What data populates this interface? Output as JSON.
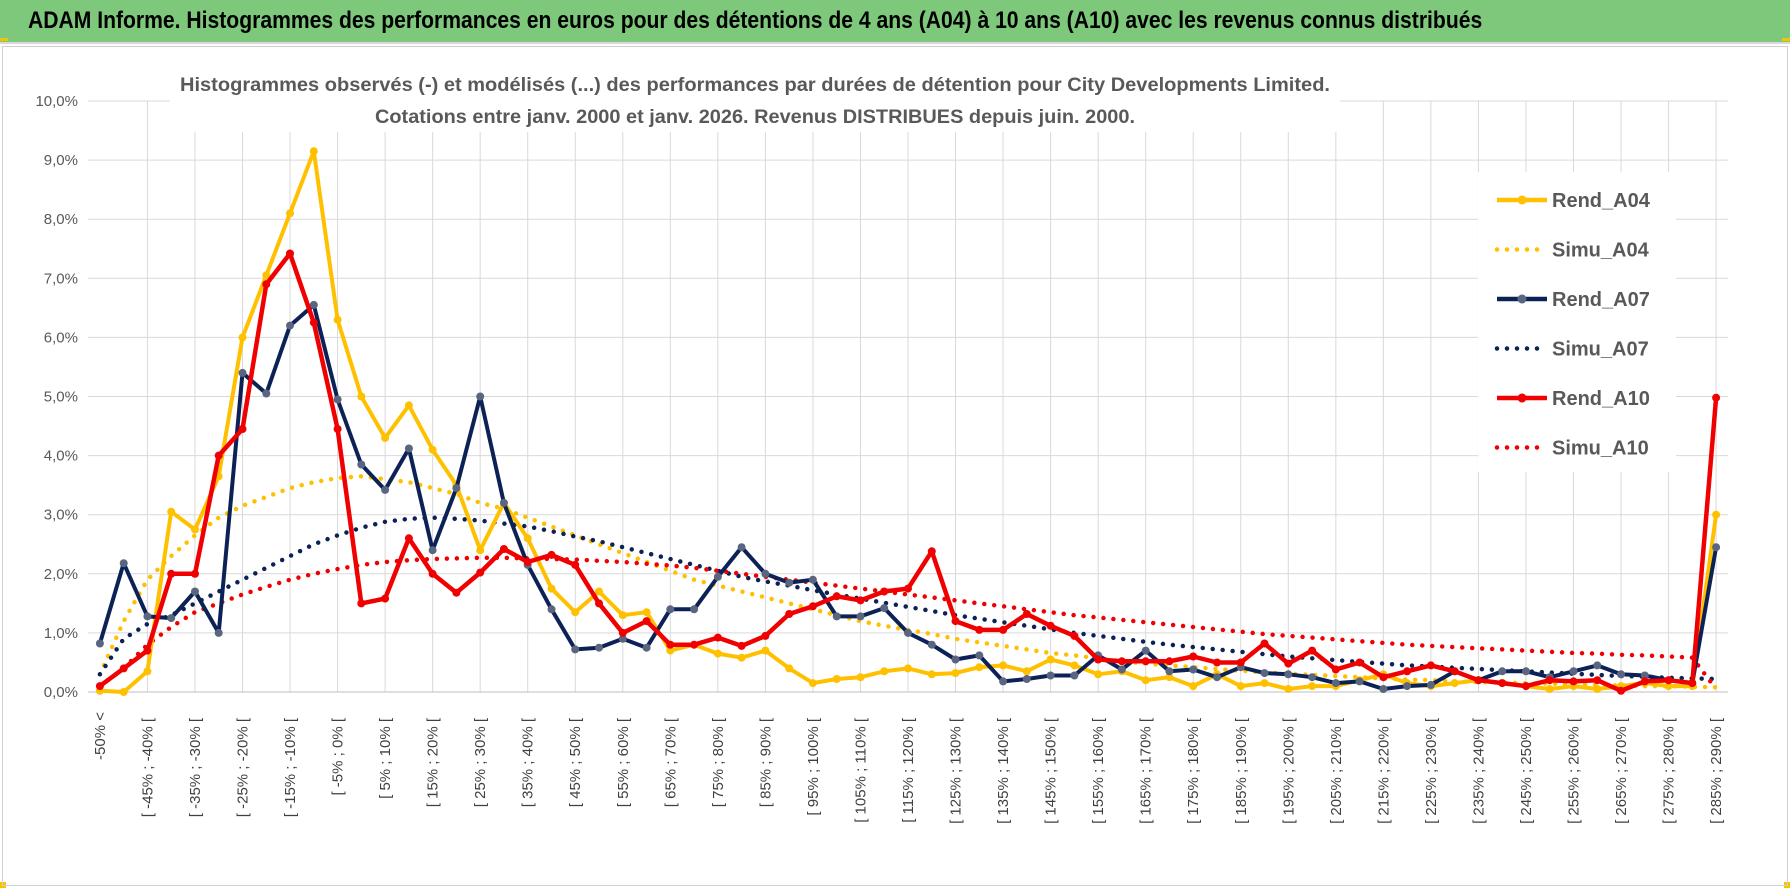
{
  "banner": {
    "title": "ADAM Informe. Histogrammes des performances en euros pour des détentions de 4 ans (A04) à 10 ans (A10) avec les revenus connus distribués"
  },
  "colors": {
    "banner_bg": "#7dc87b",
    "corner_accent": "#f5c400",
    "A04": "#ffc000",
    "A07": "#0c2257",
    "A10": "#f00000",
    "grid": "#d9d9d9"
  },
  "chart_data": {
    "type": "line",
    "title_line1": "Histogrammes observés (-) et modélisés (...) des performances par durées de détention pour City Developments Limited.",
    "title_line2": "Cotations entre janv. 2000 et janv. 2026. Revenus DISTRIBUES depuis juin. 2000.",
    "xlabel": "",
    "ylabel": "",
    "ylim": [
      0,
      10
    ],
    "y_ticks": [
      "0,0%",
      "1,0%",
      "2,0%",
      "3,0%",
      "4,0%",
      "5,0%",
      "6,0%",
      "7,0%",
      "8,0%",
      "9,0%",
      "10,0%"
    ],
    "grid": true,
    "legend_position": "right",
    "category_labels": [
      "-50% <",
      "[ -45% ; -40% [",
      "[ -35% ; -30% [",
      "[ -25% ; -20% [",
      "[ -15% ; -10% [",
      "[ -5% ; 0% [",
      "[ 5% ; 10% [",
      "[ 15% ; 20% [",
      "[ 25% ; 30% [",
      "[ 35% ; 40% [",
      "[ 45% ; 50% [",
      "[ 55% ; 60% [",
      "[ 65% ; 70% [",
      "[ 75% ; 80% [",
      "[ 85% ; 90% [",
      "[ 95% ; 100% [",
      "[ 105% ; 110% [",
      "[ 115% ; 120% [",
      "[ 125% ; 130% [",
      "[ 135% ; 140% [",
      "[ 145% ; 150% [",
      "[ 155% ; 160% [",
      "[ 165% ; 170% [",
      "[ 175% ; 180% [",
      "[ 185% ; 190% [",
      "[ 195% ; 200% [",
      "[ 205% ; 210% [",
      "[ 215% ; 220% [",
      "[ 225% ; 230% [",
      "[ 235% ; 240% [",
      "[ 245% ; 250% [",
      "[ 255% ; 260% [",
      "[ 265% ; 270% [",
      "[ 275% ; 280% [",
      "[ 285% ; 290% ["
    ],
    "series": [
      {
        "name": "Rend_A04",
        "style": "solid",
        "color": "#ffc000",
        "values": [
          0.02,
          0.0,
          0.35,
          3.05,
          2.75,
          3.65,
          6.0,
          7.05,
          8.1,
          9.15,
          6.3,
          5.0,
          4.3,
          4.85,
          4.1,
          3.5,
          2.4,
          3.2,
          2.6,
          1.75,
          1.35,
          1.7,
          1.3,
          1.35,
          0.7,
          0.8,
          0.65,
          0.58,
          0.7,
          0.4,
          0.15,
          0.22,
          0.25,
          0.35,
          0.4,
          0.3,
          0.32,
          0.42,
          0.45,
          0.35,
          0.55,
          0.45,
          0.3,
          0.35,
          0.2,
          0.25,
          0.1,
          0.3,
          0.1,
          0.15,
          0.05,
          0.1,
          0.1,
          0.2,
          0.3,
          0.15,
          0.1,
          0.15,
          0.2,
          0.15,
          0.1,
          0.05,
          0.1,
          0.05,
          0.1,
          0.15,
          0.1,
          0.1,
          3.0
        ]
      },
      {
        "name": "Simu_A04",
        "style": "dotted",
        "color": "#ffc000",
        "values": [
          0.3,
          1.2,
          1.9,
          2.3,
          2.65,
          2.95,
          3.15,
          3.3,
          3.45,
          3.55,
          3.62,
          3.65,
          3.6,
          3.55,
          3.45,
          3.35,
          3.2,
          3.1,
          2.95,
          2.8,
          2.65,
          2.5,
          2.35,
          2.2,
          2.05,
          1.9,
          1.8,
          1.7,
          1.6,
          1.5,
          1.4,
          1.3,
          1.2,
          1.12,
          1.05,
          0.98,
          0.9,
          0.84,
          0.78,
          0.72,
          0.66,
          0.62,
          0.57,
          0.52,
          0.48,
          0.45,
          0.42,
          0.39,
          0.36,
          0.33,
          0.31,
          0.29,
          0.27,
          0.25,
          0.23,
          0.21,
          0.2,
          0.18,
          0.17,
          0.16,
          0.15,
          0.14,
          0.13,
          0.12,
          0.11,
          0.1,
          0.1,
          0.09,
          0.08
        ]
      },
      {
        "name": "Rend_A07",
        "style": "solid",
        "color": "#0c2257",
        "values": [
          0.82,
          2.18,
          1.28,
          1.25,
          1.7,
          1.0,
          5.4,
          5.05,
          6.2,
          6.55,
          4.95,
          3.85,
          3.42,
          4.12,
          2.4,
          3.45,
          5.0,
          3.2,
          2.15,
          1.4,
          0.72,
          0.75,
          0.9,
          0.75,
          1.4,
          1.4,
          1.95,
          2.45,
          2.0,
          1.85,
          1.9,
          1.28,
          1.28,
          1.42,
          1.0,
          0.8,
          0.55,
          0.62,
          0.18,
          0.22,
          0.28,
          0.28,
          0.62,
          0.38,
          0.7,
          0.35,
          0.38,
          0.25,
          0.42,
          0.32,
          0.3,
          0.25,
          0.15,
          0.18,
          0.05,
          0.1,
          0.12,
          0.35,
          0.2,
          0.35,
          0.35,
          0.25,
          0.35,
          0.45,
          0.3,
          0.28,
          0.2,
          0.15,
          2.45
        ]
      },
      {
        "name": "Simu_A07",
        "style": "dotted",
        "color": "#0c2257",
        "values": [
          0.3,
          0.9,
          1.15,
          1.3,
          1.5,
          1.7,
          1.9,
          2.1,
          2.3,
          2.5,
          2.65,
          2.78,
          2.88,
          2.93,
          2.95,
          2.93,
          2.9,
          2.85,
          2.8,
          2.72,
          2.63,
          2.55,
          2.45,
          2.35,
          2.25,
          2.15,
          2.05,
          1.95,
          1.87,
          1.8,
          1.72,
          1.65,
          1.58,
          1.51,
          1.44,
          1.37,
          1.3,
          1.24,
          1.18,
          1.12,
          1.06,
          1.0,
          0.95,
          0.9,
          0.85,
          0.8,
          0.76,
          0.72,
          0.68,
          0.64,
          0.6,
          0.57,
          0.54,
          0.51,
          0.48,
          0.45,
          0.43,
          0.41,
          0.39,
          0.37,
          0.35,
          0.33,
          0.31,
          0.29,
          0.27,
          0.26,
          0.24,
          0.23,
          0.22
        ]
      },
      {
        "name": "Rend_A10",
        "style": "solid",
        "color": "#f00000",
        "values": [
          0.1,
          0.4,
          0.7,
          2.0,
          2.0,
          4.0,
          4.45,
          6.9,
          7.42,
          6.25,
          4.45,
          1.5,
          1.58,
          2.6,
          2.0,
          1.68,
          2.02,
          2.42,
          2.2,
          2.32,
          2.15,
          1.5,
          1.0,
          1.2,
          0.8,
          0.8,
          0.92,
          0.78,
          0.95,
          1.32,
          1.45,
          1.62,
          1.55,
          1.7,
          1.75,
          2.38,
          1.2,
          1.05,
          1.05,
          1.32,
          1.12,
          0.95,
          0.55,
          0.52,
          0.52,
          0.52,
          0.6,
          0.5,
          0.5,
          0.82,
          0.48,
          0.7,
          0.38,
          0.5,
          0.25,
          0.35,
          0.45,
          0.35,
          0.2,
          0.15,
          0.1,
          0.2,
          0.18,
          0.2,
          0.02,
          0.18,
          0.2,
          0.15,
          4.98
        ]
      },
      {
        "name": "Simu_A10",
        "style": "dotted",
        "color": "#f00000",
        "values": [
          0.1,
          0.4,
          0.8,
          1.1,
          1.35,
          1.5,
          1.65,
          1.78,
          1.9,
          2.0,
          2.08,
          2.15,
          2.2,
          2.23,
          2.25,
          2.26,
          2.27,
          2.27,
          2.26,
          2.25,
          2.24,
          2.22,
          2.2,
          2.17,
          2.14,
          2.1,
          2.05,
          2.0,
          1.95,
          1.9,
          1.85,
          1.8,
          1.75,
          1.7,
          1.65,
          1.6,
          1.55,
          1.5,
          1.45,
          1.4,
          1.35,
          1.3,
          1.26,
          1.22,
          1.18,
          1.14,
          1.1,
          1.06,
          1.02,
          0.98,
          0.95,
          0.92,
          0.89,
          0.86,
          0.83,
          0.8,
          0.78,
          0.76,
          0.74,
          0.72,
          0.7,
          0.68,
          0.66,
          0.65,
          0.63,
          0.62,
          0.6,
          0.58,
          0.05
        ]
      }
    ]
  }
}
